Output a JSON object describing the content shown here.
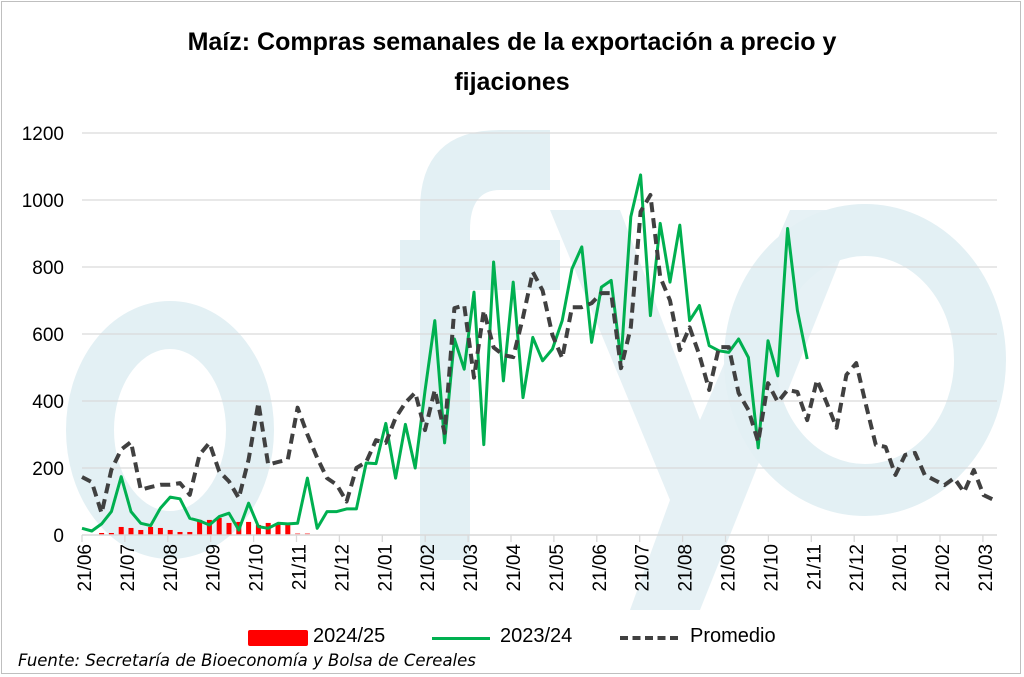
{
  "chart_data": {
    "type": "line",
    "title_line1": "Maíz: Compras semanales de la exportación a precio y",
    "title_line2": "fijaciones",
    "xlabel": "",
    "ylabel": "",
    "ylim": [
      0,
      1200
    ],
    "yticks": [
      "0",
      "200",
      "400",
      "600",
      "800",
      "1000",
      "1200"
    ],
    "xticks": [
      "21/06",
      "21/07",
      "21/08",
      "21/09",
      "21/10",
      "21/11",
      "21/12",
      "21/01",
      "21/02",
      "21/03",
      "21/04",
      "21/05",
      "21/06",
      "21/07",
      "21/08",
      "21/09",
      "21/10",
      "21/11",
      "21/12",
      "21/01",
      "21/02",
      "21/03"
    ],
    "grid": true,
    "legend_position": "bottom",
    "series": [
      {
        "name": "2024/25",
        "kind": "bar",
        "color": "#ff0000",
        "start_week": 2,
        "values": [
          6,
          6,
          24,
          21,
          15,
          24,
          21,
          15,
          9,
          9,
          45,
          45,
          51,
          36,
          39,
          39,
          30,
          36,
          33,
          30,
          6,
          6
        ]
      },
      {
        "name": "2023/24",
        "kind": "line",
        "color": "#00b050",
        "start_week": 0,
        "values": [
          20,
          12,
          33,
          70,
          174,
          70,
          35,
          28,
          80,
          113,
          108,
          50,
          42,
          30,
          55,
          65,
          15,
          95,
          25,
          20,
          35,
          33,
          35,
          170,
          20,
          70,
          70,
          78,
          78,
          215,
          213,
          333,
          170,
          330,
          200,
          430,
          640,
          275,
          585,
          495,
          725,
          270,
          815,
          460,
          755,
          410,
          590,
          520,
          555,
          640,
          795,
          860,
          575,
          740,
          760,
          520,
          950,
          1075,
          655,
          930,
          755,
          925,
          640,
          685,
          565,
          550,
          545,
          585,
          530,
          260,
          580,
          475,
          915,
          670,
          525
        ]
      },
      {
        "name": "Promedio",
        "kind": "dashed",
        "color": "#404040",
        "start_week": 0,
        "values": [
          173,
          158,
          65,
          195,
          255,
          278,
          135,
          143,
          150,
          150,
          155,
          120,
          240,
          275,
          190,
          160,
          110,
          225,
          395,
          210,
          218,
          225,
          380,
          300,
          230,
          170,
          150,
          100,
          200,
          218,
          283,
          275,
          350,
          395,
          425,
          313,
          433,
          305,
          677,
          686,
          470,
          670,
          560,
          537,
          531,
          650,
          785,
          730,
          597,
          528,
          680,
          680,
          692,
          722,
          722,
          498,
          620,
          965,
          1015,
          770,
          700,
          552,
          620,
          537,
          433,
          561,
          561,
          424,
          373,
          278,
          453,
          397,
          433,
          427,
          343,
          463,
          394,
          320,
          478,
          513,
          388,
          269,
          263,
          179,
          239,
          245,
          179,
          164,
          149,
          170,
          128,
          194,
          119,
          105
        ]
      }
    ],
    "source": "Fuente: Secretaría de Bioeconomía y Bolsa de Cereales",
    "watermark": "()fyo"
  }
}
